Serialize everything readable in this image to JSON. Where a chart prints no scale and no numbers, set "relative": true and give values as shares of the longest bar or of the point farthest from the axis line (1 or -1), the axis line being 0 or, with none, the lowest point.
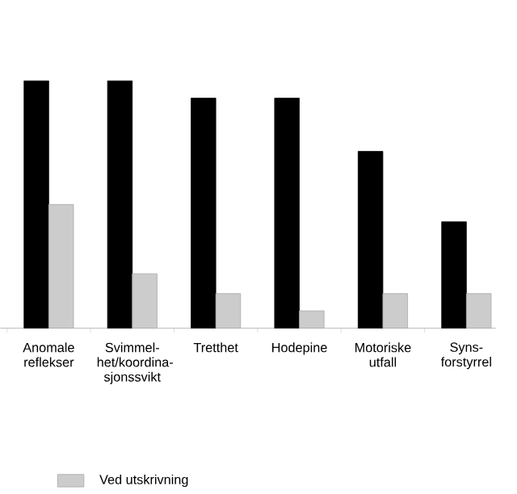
{
  "chart_data": {
    "type": "bar",
    "relative": true,
    "legend": "bottom",
    "categories": [
      "Anomale reflekser",
      "Svimmel-het/koordina-sjonssvikt",
      "Tretthet",
      "Hodepine",
      "Motoriske utfall",
      "Syns-forstyrrel"
    ],
    "series": [
      {
        "color": "#000000",
        "values": [
          1.0,
          1.0,
          0.93,
          0.93,
          0.715,
          0.43
        ]
      },
      {
        "name": "Ved utskrivning",
        "color": "#cccccc",
        "values": [
          0.5,
          0.22,
          0.14,
          0.07,
          0.14,
          0.14
        ]
      }
    ]
  }
}
